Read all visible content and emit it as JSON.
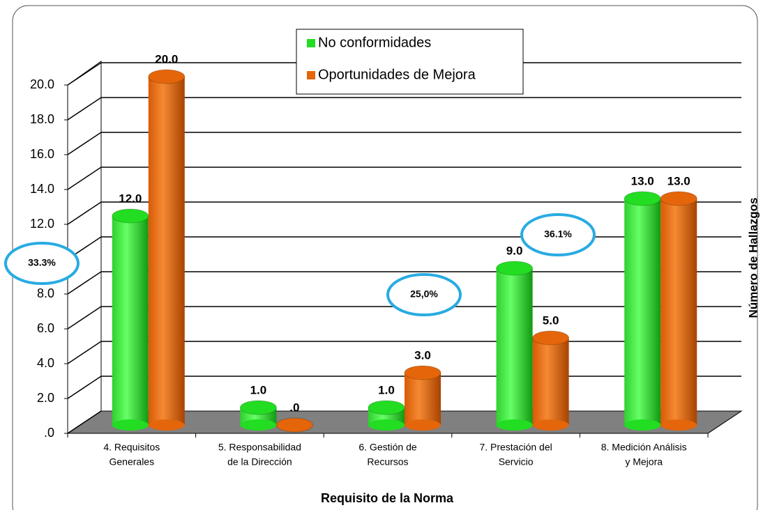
{
  "chart_data": {
    "type": "bar",
    "x_label": "Requisito de la Norma",
    "y_label": "Número de Hallazgos",
    "categories": [
      [
        "4.  Requisitos",
        "Generales"
      ],
      [
        "5.  Responsabilidad",
        "de la Dirección"
      ],
      [
        "6.  Gestión de",
        "Recursos"
      ],
      [
        "7.  Prestación del",
        "Servicio"
      ],
      [
        "8. Medición Análisis",
        "y Mejora"
      ]
    ],
    "series": [
      {
        "name": "No conformidades",
        "color": "#22dd22",
        "values": [
          12,
          1,
          1,
          9,
          13
        ],
        "value_labels": [
          "12.0",
          "1.0",
          "1.0",
          "9.0",
          "13.0"
        ]
      },
      {
        "name": "Oportunidades de Mejora",
        "color": "#e4650a",
        "values": [
          20,
          0,
          3,
          5,
          13
        ],
        "value_labels": [
          "20.0",
          ".0",
          "3.0",
          "5.0",
          "13.0"
        ]
      }
    ],
    "ylim": [
      0,
      20
    ],
    "yticks": [
      {
        "value": 0,
        "label": ".0"
      },
      {
        "value": 2,
        "label": "2.0"
      },
      {
        "value": 4,
        "label": "4.0"
      },
      {
        "value": 6,
        "label": "6.0"
      },
      {
        "value": 8,
        "label": "8.0"
      },
      {
        "value": 10,
        "label": "10.0"
      },
      {
        "value": 12,
        "label": "12.0"
      },
      {
        "value": 14,
        "label": "14.0"
      },
      {
        "value": 16,
        "label": "16.0"
      },
      {
        "value": 18,
        "label": "18.0"
      },
      {
        "value": 20,
        "label": "20.0"
      }
    ],
    "grid": true,
    "annotations": [
      "33.3%",
      "25,0%",
      "36.1%"
    ]
  }
}
